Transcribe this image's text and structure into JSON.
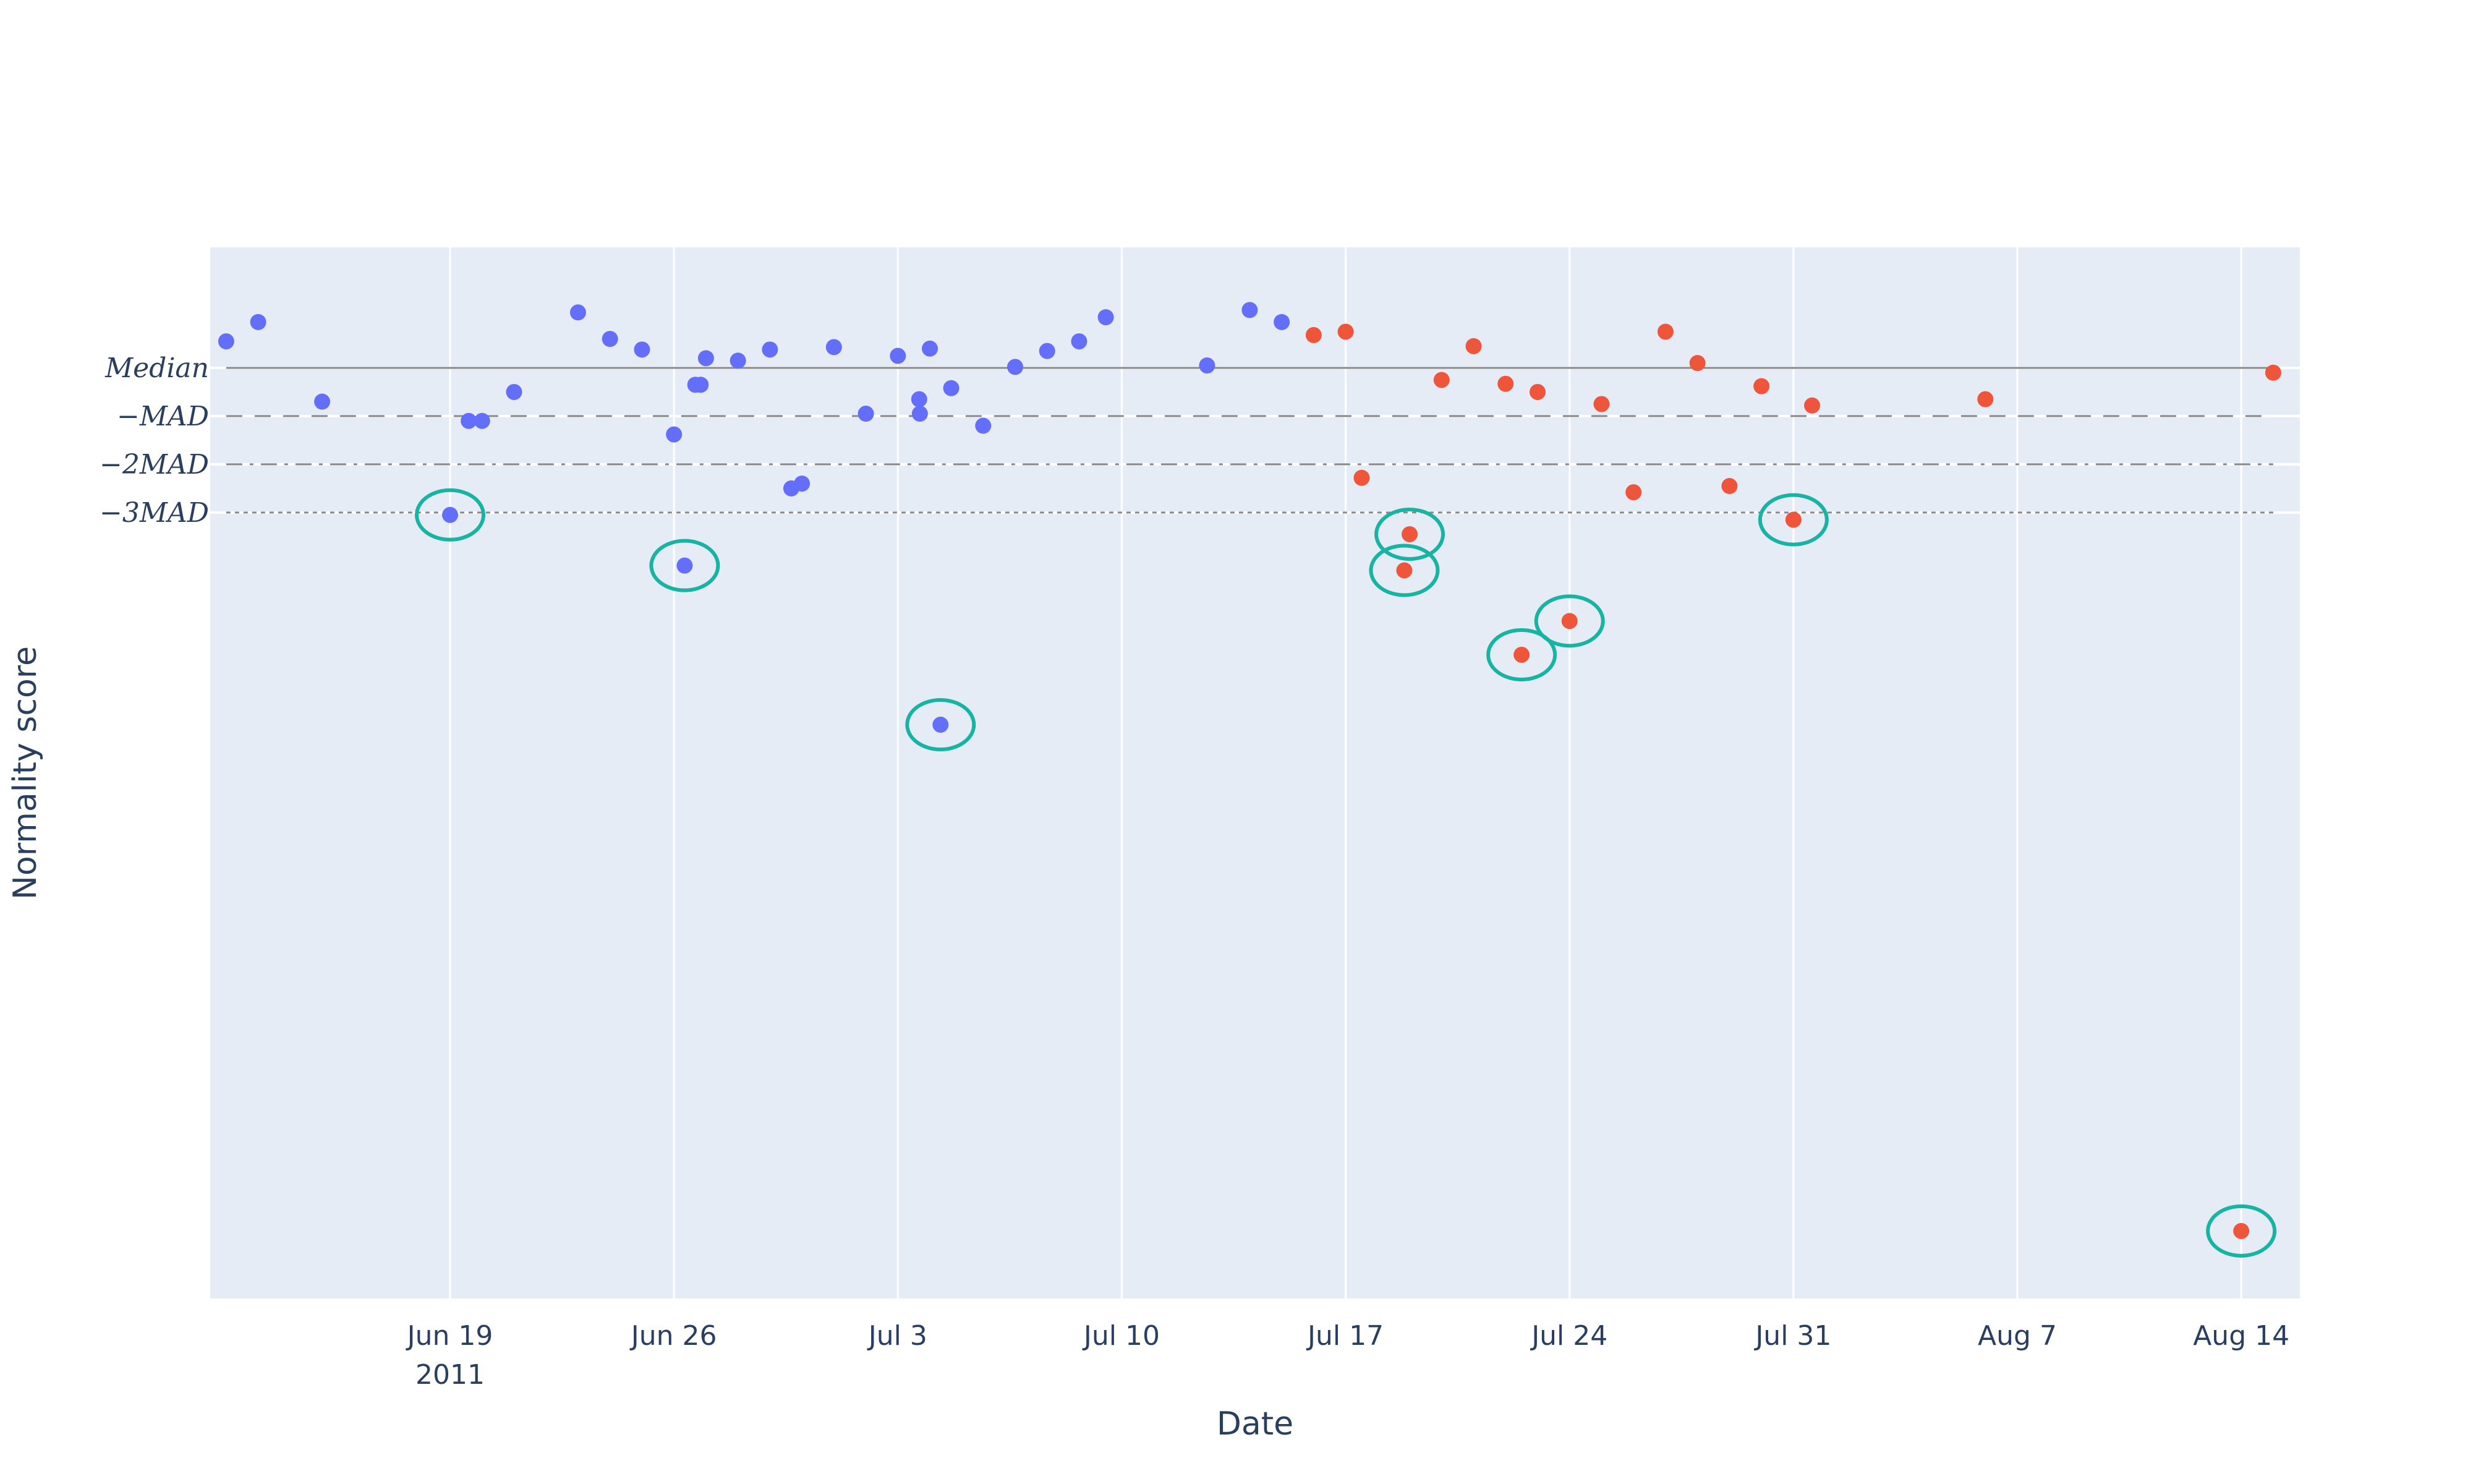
{
  "chart_data": {
    "type": "scatter",
    "title": "",
    "xlabel": "Date",
    "ylabel": "Normality score",
    "x_axis": {
      "type": "date",
      "range": [
        "2011-06-11T12:00",
        "2011-08-15T20:00"
      ],
      "ticks": [
        {
          "date": "2011-06-19",
          "label": "Jun 19",
          "sublabel": "2011"
        },
        {
          "date": "2011-06-26",
          "label": "Jun 26"
        },
        {
          "date": "2011-07-03",
          "label": "Jul 3"
        },
        {
          "date": "2011-07-10",
          "label": "Jul 10"
        },
        {
          "date": "2011-07-17",
          "label": "Jul 17"
        },
        {
          "date": "2011-07-24",
          "label": "Jul 24"
        },
        {
          "date": "2011-07-31",
          "label": "Jul 31"
        },
        {
          "date": "2011-08-07",
          "label": "Aug 7"
        },
        {
          "date": "2011-08-14",
          "label": "Aug 14"
        }
      ]
    },
    "y_axis": {
      "range": [
        -19.3,
        2.5
      ],
      "tick_labels_shown": false
    },
    "grid": true,
    "legend": "none",
    "colors": {
      "plot_background": "#e5ecf6",
      "grid": "#ffffff",
      "series_before": "#636efa",
      "series_after": "#ef553b",
      "anomaly_marker": "#17b3a3",
      "reference_line": "#888888",
      "text": "#2a3f5f"
    },
    "reference_lines": [
      {
        "label": "Median",
        "value": 0,
        "dash": "solid"
      },
      {
        "label": "−MAD",
        "value": -1,
        "dash": "dash"
      },
      {
        "label": "−2MAD",
        "value": -2,
        "dash": "dashdot"
      },
      {
        "label": "−3MAD",
        "value": -3,
        "dash": "dot"
      }
    ],
    "series": [
      {
        "color": "#636efa",
        "points": [
          {
            "x": "2011-06-12",
            "y": 0.55
          },
          {
            "x": "2011-06-13",
            "y": 0.95
          },
          {
            "x": "2011-06-15",
            "y": -0.7
          },
          {
            "x": "2011-06-19",
            "y": -3.05,
            "anomaly": true
          },
          {
            "x": "2011-06-19T14:00",
            "y": -1.1
          },
          {
            "x": "2011-06-20",
            "y": -1.1
          },
          {
            "x": "2011-06-21",
            "y": -0.5
          },
          {
            "x": "2011-06-23",
            "y": 1.15
          },
          {
            "x": "2011-06-24",
            "y": 0.6
          },
          {
            "x": "2011-06-25",
            "y": 0.38
          },
          {
            "x": "2011-06-26",
            "y": -1.38
          },
          {
            "x": "2011-06-26T08:00",
            "y": -4.1,
            "anomaly": true
          },
          {
            "x": "2011-06-26T16:00",
            "y": -0.35
          },
          {
            "x": "2011-06-26T20:00",
            "y": -0.35
          },
          {
            "x": "2011-06-27",
            "y": 0.2
          },
          {
            "x": "2011-06-28",
            "y": 0.15
          },
          {
            "x": "2011-06-29",
            "y": 0.38
          },
          {
            "x": "2011-06-29T16:00",
            "y": -2.5
          },
          {
            "x": "2011-06-30",
            "y": -2.4
          },
          {
            "x": "2011-07-01",
            "y": 0.43
          },
          {
            "x": "2011-07-02",
            "y": -0.95
          },
          {
            "x": "2011-07-03",
            "y": 0.25
          },
          {
            "x": "2011-07-03T16:00",
            "y": -0.65
          },
          {
            "x": "2011-07-03T16:30",
            "y": -0.95
          },
          {
            "x": "2011-07-04",
            "y": 0.4
          },
          {
            "x": "2011-07-04T08:00",
            "y": -7.4,
            "anomaly": true
          },
          {
            "x": "2011-07-04T16:00",
            "y": -0.42
          },
          {
            "x": "2011-07-05T16:00",
            "y": -1.2
          },
          {
            "x": "2011-07-06T16:00",
            "y": 0.02
          },
          {
            "x": "2011-07-07T16:00",
            "y": 0.35
          },
          {
            "x": "2011-07-08T16:00",
            "y": 0.55
          },
          {
            "x": "2011-07-09T12:00",
            "y": 1.05
          },
          {
            "x": "2011-07-12T16:00",
            "y": 0.05
          },
          {
            "x": "2011-07-14",
            "y": 1.2
          },
          {
            "x": "2011-07-15",
            "y": 0.95
          }
        ]
      },
      {
        "color": "#ef553b",
        "points": [
          {
            "x": "2011-07-16",
            "y": 0.68
          },
          {
            "x": "2011-07-17",
            "y": 0.75
          },
          {
            "x": "2011-07-17T12:00",
            "y": -2.28
          },
          {
            "x": "2011-07-18T20:00",
            "y": -4.2,
            "anomaly": true
          },
          {
            "x": "2011-07-19",
            "y": -3.45,
            "anomaly": true
          },
          {
            "x": "2011-07-20",
            "y": -0.25
          },
          {
            "x": "2011-07-21",
            "y": 0.45
          },
          {
            "x": "2011-07-22",
            "y": -0.33
          },
          {
            "x": "2011-07-22T12:00",
            "y": -5.95,
            "anomaly": true
          },
          {
            "x": "2011-07-23",
            "y": -0.5
          },
          {
            "x": "2011-07-24",
            "y": -5.25,
            "anomaly": true
          },
          {
            "x": "2011-07-25",
            "y": -0.75
          },
          {
            "x": "2011-07-26",
            "y": -2.58
          },
          {
            "x": "2011-07-27",
            "y": 0.75
          },
          {
            "x": "2011-07-28",
            "y": 0.1
          },
          {
            "x": "2011-07-29",
            "y": -2.45
          },
          {
            "x": "2011-07-30",
            "y": -0.38
          },
          {
            "x": "2011-07-31",
            "y": -3.15,
            "anomaly": true
          },
          {
            "x": "2011-07-31T14:00",
            "y": -0.78
          },
          {
            "x": "2011-08-06",
            "y": -0.65
          },
          {
            "x": "2011-08-14",
            "y": -17.9,
            "anomaly": true
          },
          {
            "x": "2011-08-15",
            "y": -0.1
          }
        ]
      }
    ]
  }
}
